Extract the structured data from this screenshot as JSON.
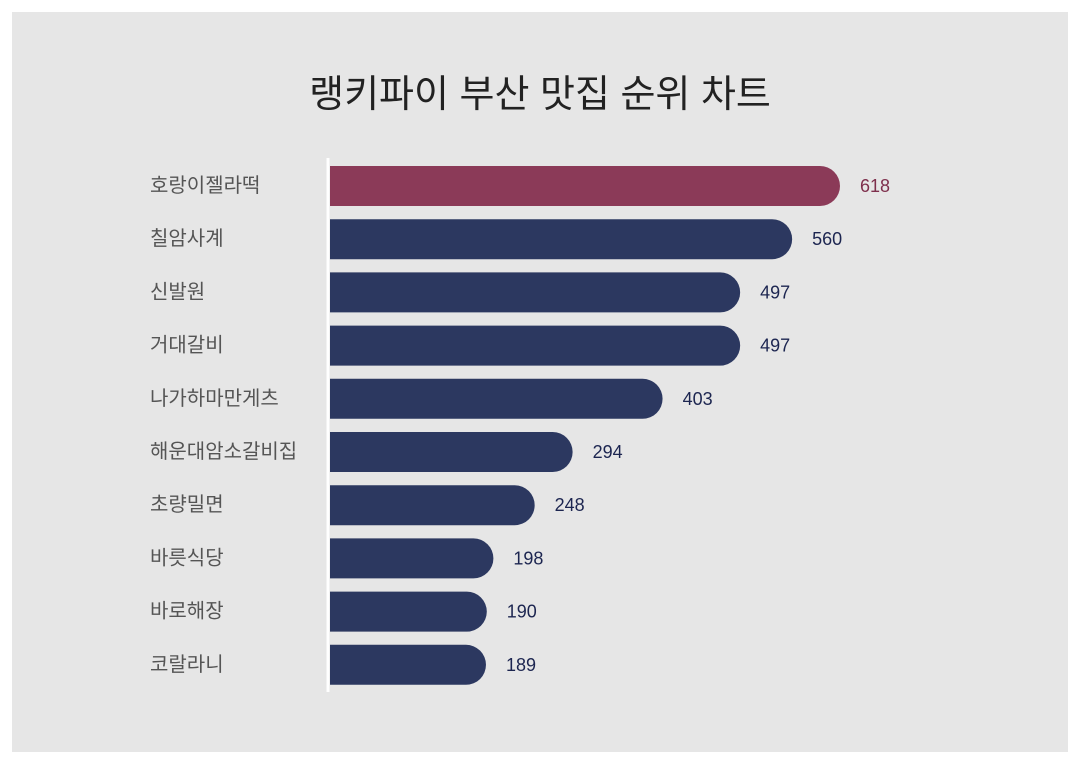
{
  "chart_data": {
    "type": "bar",
    "orientation": "horizontal",
    "title": "랭키파이 부산 맛집 순위 차트",
    "categories": [
      "호랑이젤라떡",
      "칠암사계",
      "신발원",
      "거대갈비",
      "나가하마만게츠",
      "해운대암소갈비집",
      "초량밀면",
      "바릇식당",
      "바로해장",
      "코랄라니"
    ],
    "values": [
      618,
      560,
      497,
      497,
      403,
      294,
      248,
      198,
      190,
      189
    ],
    "bar_colors": [
      "#8b3a58",
      "#2c3860",
      "#2c3860",
      "#2c3860",
      "#2c3860",
      "#2c3860",
      "#2c3860",
      "#2c3860",
      "#2c3860",
      "#2c3860"
    ],
    "value_label_colors": [
      "#7e2f4c",
      "#1c2550",
      "#1c2550",
      "#1c2550",
      "#1c2550",
      "#1c2550",
      "#1c2550",
      "#1c2550",
      "#1c2550",
      "#1c2550"
    ],
    "background_color": "#e6e6e6",
    "axis_color": "#ffffff",
    "grid": false,
    "legend": "none"
  }
}
